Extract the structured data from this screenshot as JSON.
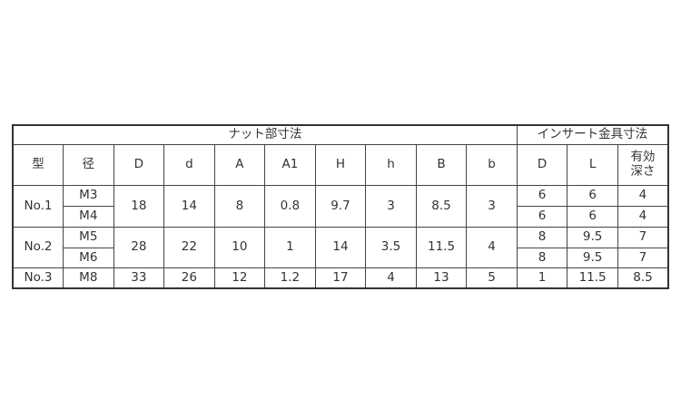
{
  "header": {
    "group_nut": "ナット部寸法",
    "group_insert": "インサート金具寸法",
    "columns": [
      "型",
      "径",
      "D",
      "d",
      "A",
      "A1",
      "H",
      "h",
      "B",
      "b",
      "D",
      "L",
      "有効深さ"
    ],
    "col_last_line1": "有効",
    "col_last_line2": "深さ"
  },
  "rows": [
    {
      "type": "No.1",
      "sizes": [
        "M3",
        "M4"
      ],
      "D": "18",
      "d": "14",
      "A": "8",
      "A1": "0.8",
      "H": "9.7",
      "h": "3",
      "B": "8.5",
      "b": "3",
      "insert": [
        {
          "D": "6",
          "L": "6",
          "depth": "4"
        },
        {
          "D": "6",
          "L": "6",
          "depth": "4"
        }
      ]
    },
    {
      "type": "No.2",
      "sizes": [
        "M5",
        "M6"
      ],
      "D": "28",
      "d": "22",
      "A": "10",
      "A1": "1",
      "H": "14",
      "h": "3.5",
      "B": "11.5",
      "b": "4",
      "insert": [
        {
          "D": "8",
          "L": "9.5",
          "depth": "7"
        },
        {
          "D": "8",
          "L": "9.5",
          "depth": "7"
        }
      ]
    },
    {
      "type": "No.3",
      "sizes": [
        "M8"
      ],
      "D": "33",
      "d": "26",
      "A": "12",
      "A1": "1.2",
      "H": "17",
      "h": "4",
      "B": "13",
      "b": "5",
      "insert": [
        {
          "D": "1",
          "L": "11.5",
          "depth": "8.5"
        }
      ]
    }
  ]
}
